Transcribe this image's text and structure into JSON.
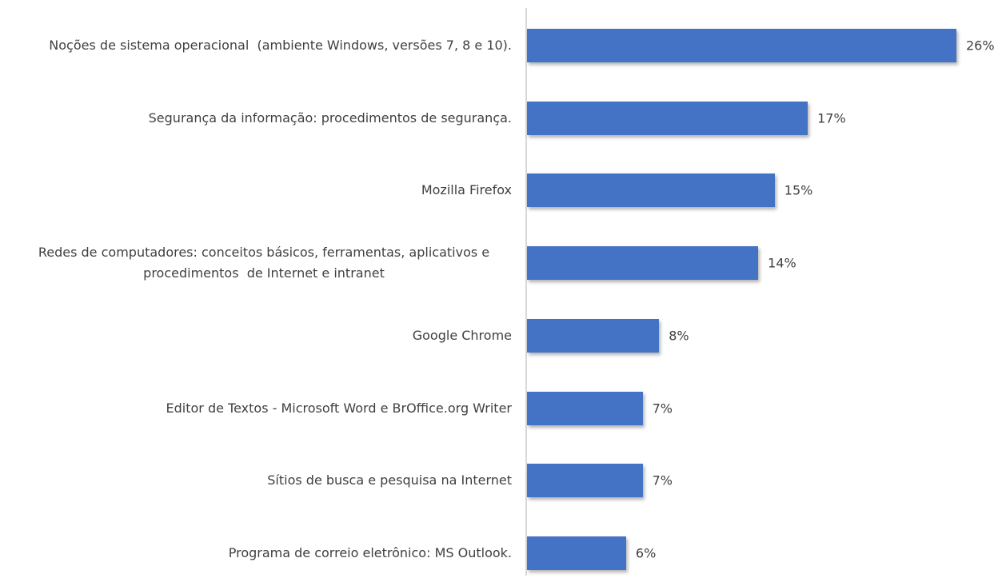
{
  "chart_data": {
    "type": "barh",
    "categories": [
      "Noções de sistema operacional  (ambiente Windows, versões 7, 8 e 10).",
      "Segurança da informação: procedimentos de segurança.",
      "Mozilla Firefox",
      "Redes de computadores: conceitos básicos, ferramentas, aplicativos e procedimentos  de Internet e intranet",
      "Google Chrome",
      "Editor de Textos - Microsoft Word e BrOffice.org Writer",
      "Sítios de busca e pesquisa na Internet",
      "Programa de correio eletrônico: MS Outlook."
    ],
    "values": [
      26,
      17,
      15,
      14,
      8,
      7,
      7,
      6
    ],
    "value_labels": [
      "26%",
      "17%",
      "15%",
      "14%",
      "8%",
      "7%",
      "7%",
      "6%"
    ],
    "color": "#4472c4"
  }
}
